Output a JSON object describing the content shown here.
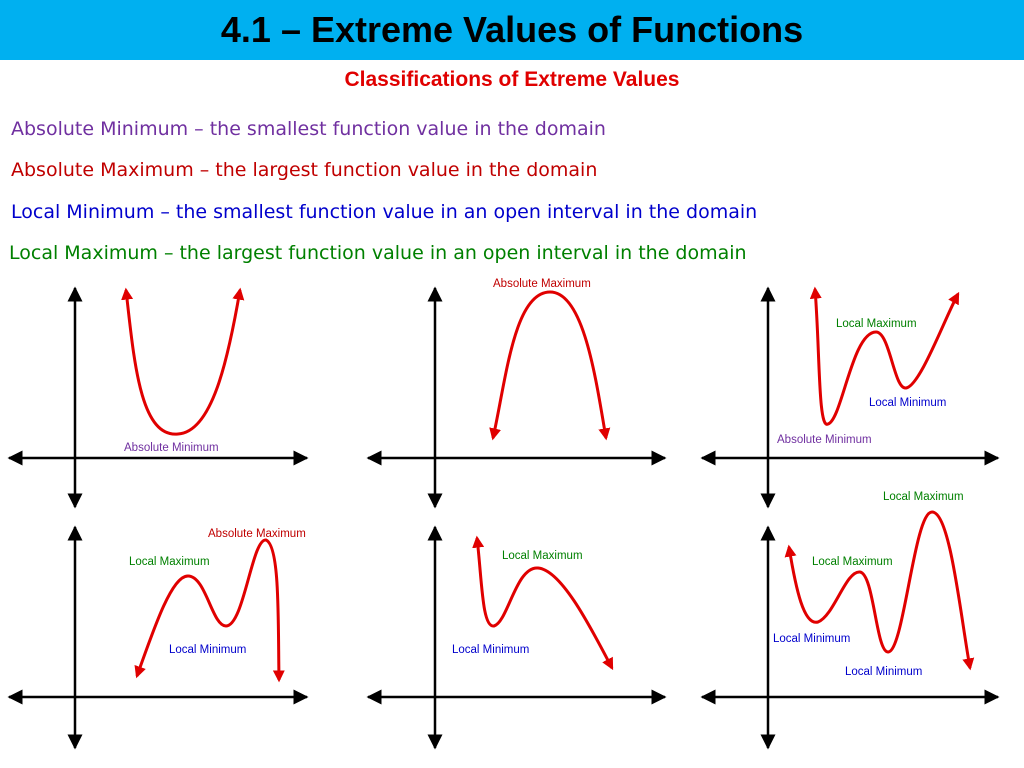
{
  "title": "4.1 – Extreme Values of Functions",
  "subtitle": "Classifications of Extreme Values",
  "colors": {
    "title_bar": "#00b0f0",
    "absolute_minimum": "#7030a0",
    "absolute_maximum": "#c00000",
    "local_minimum": "#0000cc",
    "local_maximum": "#008000",
    "curve": "#e00000"
  },
  "definitions": [
    {
      "text": "Absolute Minimum – the smallest function value in the domain",
      "color": "#7030a0"
    },
    {
      "text": "Absolute Maximum – the largest function value in the domain",
      "color": "#c00000"
    },
    {
      "text": "Local Minimum – the smallest function value in an open interval in the domain",
      "color": "#0000cc"
    },
    {
      "text": "Local Maximum – the largest function value in an open interval in the domain",
      "color": "#008000"
    }
  ],
  "graphs": [
    {
      "labels": [
        "Absolute Minimum"
      ]
    },
    {
      "labels": [
        "Absolute Maximum"
      ]
    },
    {
      "labels": [
        "Local Maximum",
        "Local Minimum",
        "Absolute Minimum"
      ]
    },
    {
      "labels": [
        "Absolute Maximum",
        "Local Maximum",
        "Local Minimum"
      ]
    },
    {
      "labels": [
        "Local Maximum",
        "Local Minimum"
      ]
    },
    {
      "labels": [
        "Local Maximum",
        "Local Maximum",
        "Local Minimum",
        "Local Minimum"
      ]
    }
  ]
}
